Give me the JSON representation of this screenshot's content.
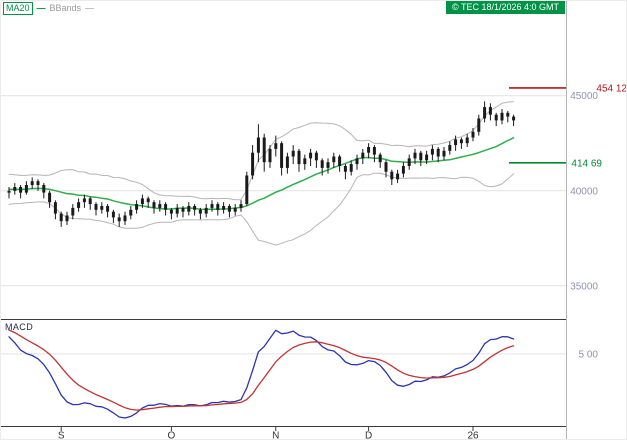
{
  "legend": {
    "ma20": "MA20",
    "bbands": "BBands",
    "swatch": "—"
  },
  "header": {
    "copyright": "© TEC 18/1/2026 4:0 GMT"
  },
  "macd_panel": {
    "label": "MACD",
    "gridline_value": 5,
    "gridline_label": "5 00"
  },
  "levels": [
    {
      "name": "resistance",
      "value": 454.12,
      "label": "454 12",
      "color": "#b01818"
    },
    {
      "name": "support",
      "value": 414.69,
      "label": "414 69",
      "color": "#008a2e"
    }
  ],
  "colors": {
    "accent_green": "#009247",
    "legend_gray": "#9a9a9a",
    "ma_line": "#2fae4a",
    "bbands": "#b5b5b5",
    "candle": "#1a1a1a",
    "grid": "#e2e2e6",
    "axis_label": "#9191b5",
    "macd_line": "#2b35b0",
    "macd_signal": "#c03434",
    "separator": "#3a3a3a",
    "axis_line": "#b3b3b3",
    "month_label": "#333333"
  },
  "chart_data": {
    "type": "candlestick",
    "title": "",
    "price_axis": {
      "range": [
        342,
        463
      ],
      "ticks": [
        {
          "v": 450,
          "label": "45000"
        },
        {
          "v": 400,
          "label": "40000"
        },
        {
          "v": 350,
          "label": "35000"
        }
      ]
    },
    "x_axis": {
      "ticks": [
        {
          "i": 9,
          "label": "S"
        },
        {
          "i": 28,
          "label": "O"
        },
        {
          "i": 46,
          "label": "N"
        },
        {
          "i": 62,
          "label": "D"
        },
        {
          "i": 80,
          "label": "26"
        }
      ]
    },
    "indicators": {
      "ma_window": 20,
      "bb_mult": 2,
      "warmup_closes": [
        402,
        396,
        407,
        398,
        406,
        395,
        403,
        397,
        405,
        399
      ],
      "macd_seed": {
        "ema12": 405,
        "ema26": 397,
        "signal": 8
      }
    },
    "candles_ohlc": [
      [
        399,
        402,
        396,
        400
      ],
      [
        400,
        404,
        398,
        402
      ],
      [
        402,
        403,
        396,
        399
      ],
      [
        399,
        405,
        398,
        403
      ],
      [
        403,
        407,
        401,
        405
      ],
      [
        405,
        406,
        400,
        403
      ],
      [
        403,
        404,
        396,
        399
      ],
      [
        399,
        400,
        391,
        394
      ],
      [
        394,
        395,
        385,
        388
      ],
      [
        388,
        389,
        381,
        384
      ],
      [
        384,
        389,
        382,
        387
      ],
      [
        387,
        393,
        385,
        391
      ],
      [
        391,
        396,
        389,
        394
      ],
      [
        394,
        398,
        391,
        396
      ],
      [
        396,
        397,
        390,
        393
      ],
      [
        393,
        394,
        387,
        390
      ],
      [
        390,
        394,
        388,
        392
      ],
      [
        392,
        393,
        386,
        389
      ],
      [
        389,
        390,
        383,
        386
      ],
      [
        386,
        388,
        381,
        384
      ],
      [
        384,
        389,
        382,
        387
      ],
      [
        387,
        392,
        385,
        390
      ],
      [
        390,
        395,
        388,
        393
      ],
      [
        393,
        398,
        391,
        396
      ],
      [
        396,
        397,
        391,
        394
      ],
      [
        394,
        395,
        388,
        391
      ],
      [
        391,
        395,
        389,
        393
      ],
      [
        393,
        394,
        387,
        390
      ],
      [
        390,
        391,
        385,
        388
      ],
      [
        388,
        393,
        386,
        391
      ],
      [
        391,
        392,
        386,
        389
      ],
      [
        389,
        394,
        387,
        392
      ],
      [
        392,
        393,
        387,
        390
      ],
      [
        390,
        391,
        385,
        388
      ],
      [
        388,
        393,
        386,
        391
      ],
      [
        391,
        395,
        389,
        393
      ],
      [
        393,
        394,
        387,
        390
      ],
      [
        390,
        394,
        388,
        392
      ],
      [
        392,
        393,
        386,
        389
      ],
      [
        389,
        393,
        387,
        391
      ],
      [
        391,
        395,
        389,
        393
      ],
      [
        393,
        410,
        392,
        408
      ],
      [
        408,
        424,
        406,
        420
      ],
      [
        420,
        435,
        415,
        428
      ],
      [
        428,
        430,
        410,
        415
      ],
      [
        415,
        424,
        412,
        422
      ],
      [
        422,
        429,
        418,
        425
      ],
      [
        425,
        426,
        408,
        412
      ],
      [
        412,
        420,
        409,
        418
      ],
      [
        418,
        424,
        414,
        421
      ],
      [
        421,
        422,
        410,
        414
      ],
      [
        414,
        419,
        411,
        417
      ],
      [
        417,
        422,
        413,
        420
      ],
      [
        420,
        421,
        412,
        416
      ],
      [
        416,
        417,
        408,
        412
      ],
      [
        412,
        417,
        409,
        415
      ],
      [
        415,
        420,
        412,
        418
      ],
      [
        418,
        419,
        410,
        413
      ],
      [
        413,
        414,
        406,
        410
      ],
      [
        410,
        416,
        408,
        414
      ],
      [
        414,
        419,
        411,
        417
      ],
      [
        417,
        422,
        414,
        420
      ],
      [
        420,
        425,
        417,
        423
      ],
      [
        423,
        424,
        415,
        419
      ],
      [
        419,
        420,
        412,
        415
      ],
      [
        415,
        416,
        407,
        410
      ],
      [
        410,
        411,
        403,
        406
      ],
      [
        406,
        411,
        404,
        409
      ],
      [
        409,
        415,
        407,
        413
      ],
      [
        413,
        419,
        411,
        417
      ],
      [
        417,
        422,
        414,
        420
      ],
      [
        420,
        421,
        413,
        416
      ],
      [
        416,
        421,
        414,
        419
      ],
      [
        419,
        424,
        416,
        422
      ],
      [
        422,
        423,
        415,
        418
      ],
      [
        418,
        423,
        416,
        421
      ],
      [
        421,
        426,
        419,
        424
      ],
      [
        424,
        429,
        421,
        427
      ],
      [
        427,
        428,
        422,
        425
      ],
      [
        425,
        430,
        423,
        428
      ],
      [
        428,
        433,
        426,
        431
      ],
      [
        431,
        440,
        429,
        438
      ],
      [
        438,
        447,
        436,
        444
      ],
      [
        444,
        446,
        437,
        440
      ],
      [
        440,
        441,
        434,
        437
      ],
      [
        437,
        443,
        435,
        441
      ],
      [
        441,
        442,
        436,
        439
      ],
      [
        439,
        440,
        434,
        437
      ]
    ]
  }
}
